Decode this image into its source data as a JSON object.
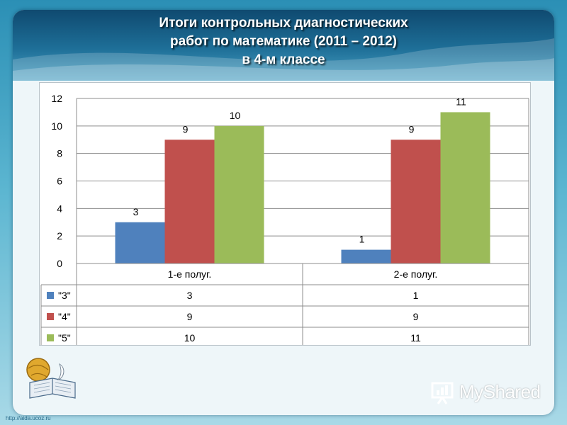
{
  "colors": {
    "series_3": "#4f81bd",
    "series_4": "#c0504d",
    "series_5": "#9bbb59",
    "header": "#1e6f98"
  },
  "slide": {
    "title_lines": [
      "Итоги контрольных диагностических",
      "работ по математике (2011 – 2012)",
      "в 4-м классе"
    ],
    "watermark": "MyShared",
    "url": "http://aida.ucoz.ru",
    "logo_icon": "book-globe-icon"
  },
  "chart_data": {
    "type": "bar",
    "categories": [
      "1-е полуг.",
      "2-е полуг."
    ],
    "series": [
      {
        "name": "\"3\"",
        "values": [
          3,
          1
        ],
        "color": "#4f81bd"
      },
      {
        "name": "\"4\"",
        "values": [
          9,
          9
        ],
        "color": "#c0504d"
      },
      {
        "name": "\"5\"",
        "values": [
          10,
          11
        ],
        "color": "#9bbb59"
      }
    ],
    "yticks": [
      "0",
      "2",
      "4",
      "6",
      "8",
      "10",
      "12"
    ],
    "ylim": [
      0,
      12
    ],
    "grid": true,
    "legend": "data table below chart"
  }
}
